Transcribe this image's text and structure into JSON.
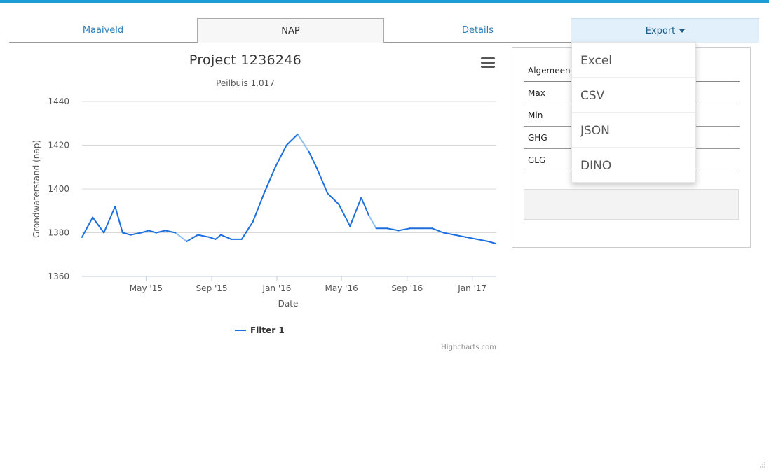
{
  "tabs": [
    {
      "label": "Maaiveld"
    },
    {
      "label": "NAP"
    },
    {
      "label": "Details"
    },
    {
      "label": "Export"
    }
  ],
  "export_menu": [
    "Excel",
    "CSV",
    "JSON",
    "DINO"
  ],
  "stats": {
    "header": "Algemeen",
    "rows": [
      "Max",
      "Min",
      "GHG",
      "GLG"
    ]
  },
  "chart_data": {
    "type": "line",
    "title": "Project 1236246",
    "subtitle": "Peilbuis 1.017",
    "xlabel": "Date",
    "ylabel": "Grondwaterstand (nap)",
    "ylim": [
      1360,
      1440
    ],
    "yticks": [
      "1440",
      "1420",
      "1400",
      "1380",
      "1360"
    ],
    "xticks": [
      "May '15",
      "Sep '15",
      "Jan '16",
      "May '16",
      "Sep '16",
      "Jan '17"
    ],
    "credits": "Highcharts.com",
    "grid": true,
    "legend_position": "bottom",
    "series": [
      {
        "name": "Filter 1",
        "color": "#1c6fde",
        "gap_color": "#8ec0f0",
        "x": [
          "2015-01-01",
          "2015-01-21",
          "2015-02-11",
          "2015-03-04",
          "2015-03-18",
          "2015-04-02",
          "2015-04-22",
          "2015-05-06",
          "2015-05-20",
          "2015-06-06",
          "2015-06-25",
          "2015-07-16",
          "2015-08-06",
          "2015-08-27",
          "2015-09-08",
          "2015-09-18",
          "2015-10-08",
          "2015-10-27",
          "2015-11-17",
          "2015-12-08",
          "2015-12-29",
          "2016-01-19",
          "2016-02-09",
          "2016-03-01",
          "2016-03-15",
          "2016-04-05",
          "2016-04-26",
          "2016-05-17",
          "2016-06-07",
          "2016-06-21",
          "2016-07-05",
          "2016-07-26",
          "2016-08-16",
          "2016-09-06",
          "2016-09-27",
          "2016-10-18",
          "2016-11-08",
          "2016-11-29",
          "2016-12-20",
          "2017-01-10",
          "2017-01-31",
          "2017-02-14"
        ],
        "values": [
          1378,
          1387,
          1380,
          1392,
          1380,
          1379,
          1380,
          1381,
          1380,
          1381,
          1380,
          1376,
          1379,
          1378,
          1377,
          1379,
          1377,
          1377,
          1385,
          1398,
          1410,
          1420,
          1425,
          1417,
          1410,
          1398,
          1393,
          1383,
          1396,
          1388,
          1382,
          1382,
          1381,
          1382,
          1382,
          1382,
          1380,
          1379,
          1378,
          1377,
          1376,
          1375
        ]
      }
    ]
  }
}
